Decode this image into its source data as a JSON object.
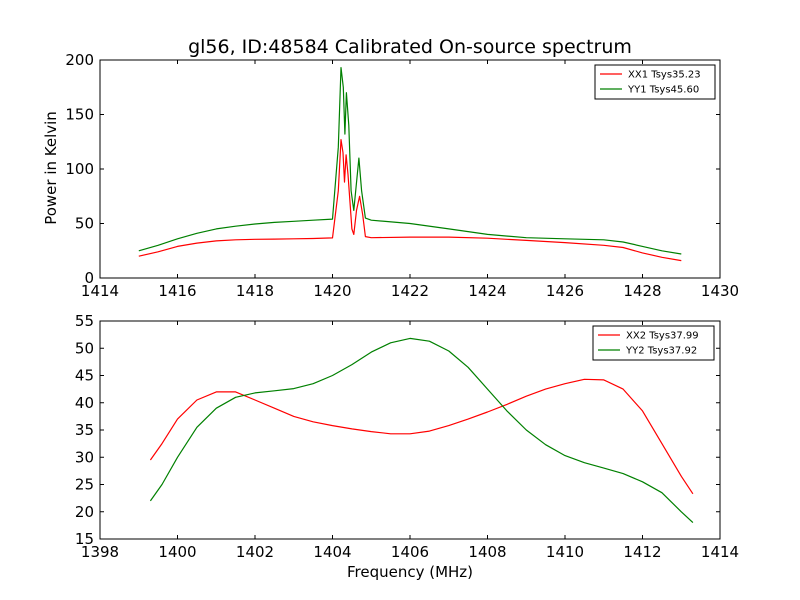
{
  "chart_data": [
    {
      "type": "line",
      "title": "gl56, ID:48584 Calibrated On-source spectrum",
      "xlabel": "",
      "ylabel": "Power in Kelvin",
      "xlim": [
        1414,
        1430
      ],
      "ylim": [
        0,
        200
      ],
      "xticks": [
        1414,
        1416,
        1418,
        1420,
        1422,
        1424,
        1426,
        1428,
        1430
      ],
      "yticks": [
        0,
        50,
        100,
        150,
        200
      ],
      "grid": false,
      "legend_position": "top-right",
      "series": [
        {
          "name": "XX1 Tsys35.23",
          "color": "#ff0000",
          "points": [
            [
              1415.0,
              20
            ],
            [
              1415.5,
              24
            ],
            [
              1416.0,
              29
            ],
            [
              1416.5,
              32
            ],
            [
              1417.0,
              34
            ],
            [
              1417.5,
              35
            ],
            [
              1418.0,
              35.5
            ],
            [
              1418.5,
              35.7
            ],
            [
              1419.0,
              36
            ],
            [
              1419.5,
              36.2
            ],
            [
              1420.0,
              36.8
            ],
            [
              1420.15,
              80
            ],
            [
              1420.22,
              127
            ],
            [
              1420.27,
              115
            ],
            [
              1420.31,
              88
            ],
            [
              1420.35,
              113
            ],
            [
              1420.4,
              95
            ],
            [
              1420.5,
              45
            ],
            [
              1420.55,
              40
            ],
            [
              1420.62,
              62
            ],
            [
              1420.7,
              75
            ],
            [
              1420.78,
              58
            ],
            [
              1420.85,
              38
            ],
            [
              1421.0,
              37
            ],
            [
              1422.0,
              37.5
            ],
            [
              1423.0,
              37.5
            ],
            [
              1424.0,
              36.5
            ],
            [
              1425.0,
              34.5
            ],
            [
              1426.0,
              32.5
            ],
            [
              1427.0,
              30
            ],
            [
              1427.5,
              28
            ],
            [
              1428.0,
              23
            ],
            [
              1428.5,
              19
            ],
            [
              1429.0,
              16
            ]
          ]
        },
        {
          "name": "YY1 Tsys45.60",
          "color": "#008000",
          "points": [
            [
              1415.0,
              25
            ],
            [
              1415.5,
              30
            ],
            [
              1416.0,
              36
            ],
            [
              1416.5,
              41
            ],
            [
              1417.0,
              45
            ],
            [
              1417.5,
              47.5
            ],
            [
              1418.0,
              49.5
            ],
            [
              1418.5,
              51
            ],
            [
              1419.0,
              52
            ],
            [
              1419.5,
              53
            ],
            [
              1420.0,
              54
            ],
            [
              1420.15,
              120
            ],
            [
              1420.22,
              193
            ],
            [
              1420.28,
              175
            ],
            [
              1420.32,
              132
            ],
            [
              1420.36,
              170
            ],
            [
              1420.42,
              140
            ],
            [
              1420.48,
              80
            ],
            [
              1420.55,
              62
            ],
            [
              1420.6,
              80
            ],
            [
              1420.68,
              110
            ],
            [
              1420.75,
              80
            ],
            [
              1420.85,
              55
            ],
            [
              1421.0,
              53
            ],
            [
              1422.0,
              50
            ],
            [
              1423.0,
              45
            ],
            [
              1424.0,
              40
            ],
            [
              1425.0,
              37
            ],
            [
              1426.0,
              36
            ],
            [
              1427.0,
              35
            ],
            [
              1427.5,
              33
            ],
            [
              1428.0,
              29
            ],
            [
              1428.5,
              25
            ],
            [
              1429.0,
              22
            ]
          ]
        }
      ]
    },
    {
      "type": "line",
      "title": "",
      "xlabel": "Frequency (MHz)",
      "ylabel": "",
      "xlim": [
        1398,
        1414
      ],
      "ylim": [
        15,
        55
      ],
      "xticks": [
        1398,
        1400,
        1402,
        1404,
        1406,
        1408,
        1410,
        1412,
        1414
      ],
      "yticks": [
        15,
        20,
        25,
        30,
        35,
        40,
        45,
        50,
        55
      ],
      "grid": false,
      "legend_position": "top-right",
      "series": [
        {
          "name": "XX2 Tsys37.99",
          "color": "#ff0000",
          "points": [
            [
              1399.3,
              29.5
            ],
            [
              1399.6,
              32.5
            ],
            [
              1400.0,
              37
            ],
            [
              1400.5,
              40.5
            ],
            [
              1401.0,
              42
            ],
            [
              1401.5,
              42
            ],
            [
              1402.0,
              40.5
            ],
            [
              1402.5,
              39
            ],
            [
              1403.0,
              37.5
            ],
            [
              1403.5,
              36.5
            ],
            [
              1404.0,
              35.8
            ],
            [
              1404.5,
              35.2
            ],
            [
              1405.0,
              34.7
            ],
            [
              1405.5,
              34.3
            ],
            [
              1406.0,
              34.3
            ],
            [
              1406.5,
              34.8
            ],
            [
              1407.0,
              35.8
            ],
            [
              1407.5,
              37
            ],
            [
              1408.0,
              38.3
            ],
            [
              1408.5,
              39.7
            ],
            [
              1409.0,
              41.2
            ],
            [
              1409.5,
              42.5
            ],
            [
              1410.0,
              43.5
            ],
            [
              1410.5,
              44.3
            ],
            [
              1411.0,
              44.2
            ],
            [
              1411.5,
              42.5
            ],
            [
              1412.0,
              38.5
            ],
            [
              1412.5,
              32.5
            ],
            [
              1413.0,
              26.5
            ],
            [
              1413.3,
              23.3
            ]
          ]
        },
        {
          "name": "YY2 Tsys37.92",
          "color": "#008000",
          "points": [
            [
              1399.3,
              22
            ],
            [
              1399.6,
              25
            ],
            [
              1400.0,
              30
            ],
            [
              1400.5,
              35.5
            ],
            [
              1401.0,
              39
            ],
            [
              1401.5,
              41
            ],
            [
              1402.0,
              41.8
            ],
            [
              1402.5,
              42.2
            ],
            [
              1403.0,
              42.6
            ],
            [
              1403.5,
              43.5
            ],
            [
              1404.0,
              45
            ],
            [
              1404.5,
              47
            ],
            [
              1405.0,
              49.3
            ],
            [
              1405.5,
              51
            ],
            [
              1406.0,
              51.8
            ],
            [
              1406.5,
              51.3
            ],
            [
              1407.0,
              49.5
            ],
            [
              1407.5,
              46.5
            ],
            [
              1408.0,
              42.5
            ],
            [
              1408.5,
              38.5
            ],
            [
              1409.0,
              35
            ],
            [
              1409.5,
              32.3
            ],
            [
              1410.0,
              30.3
            ],
            [
              1410.5,
              29
            ],
            [
              1411.0,
              28
            ],
            [
              1411.5,
              27
            ],
            [
              1412.0,
              25.5
            ],
            [
              1412.5,
              23.5
            ],
            [
              1413.0,
              20
            ],
            [
              1413.3,
              18
            ]
          ]
        }
      ]
    }
  ]
}
